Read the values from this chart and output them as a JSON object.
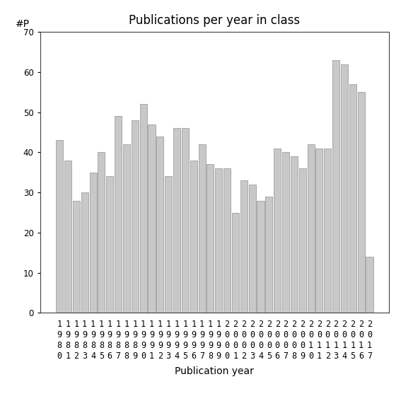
{
  "title": "Publications per year in class",
  "xlabel": "Publication year",
  "ylabel": "#P",
  "years": [
    1980,
    1981,
    1982,
    1983,
    1984,
    1985,
    1986,
    1987,
    1988,
    1989,
    1990,
    1991,
    1992,
    1993,
    1994,
    1995,
    1996,
    1997,
    1998,
    1999,
    2000,
    2001,
    2002,
    2003,
    2004,
    2005,
    2006,
    2007,
    2008,
    2009,
    2010,
    2011,
    2012,
    2013,
    2014,
    2015,
    2016,
    2017
  ],
  "values": [
    43,
    38,
    28,
    30,
    35,
    40,
    34,
    49,
    42,
    48,
    52,
    47,
    44,
    34,
    46,
    46,
    38,
    42,
    37,
    36,
    36,
    25,
    33,
    32,
    28,
    29,
    41,
    40,
    39,
    36,
    42,
    41,
    41,
    63,
    62,
    57,
    55,
    14
  ],
  "bar_color": "#c8c8c8",
  "bar_edge_color": "#909090",
  "ylim": [
    0,
    70
  ],
  "yticks": [
    0,
    10,
    20,
    30,
    40,
    50,
    60,
    70
  ],
  "background_color": "#ffffff",
  "title_fontsize": 12,
  "label_fontsize": 10,
  "tick_fontsize": 8.5
}
